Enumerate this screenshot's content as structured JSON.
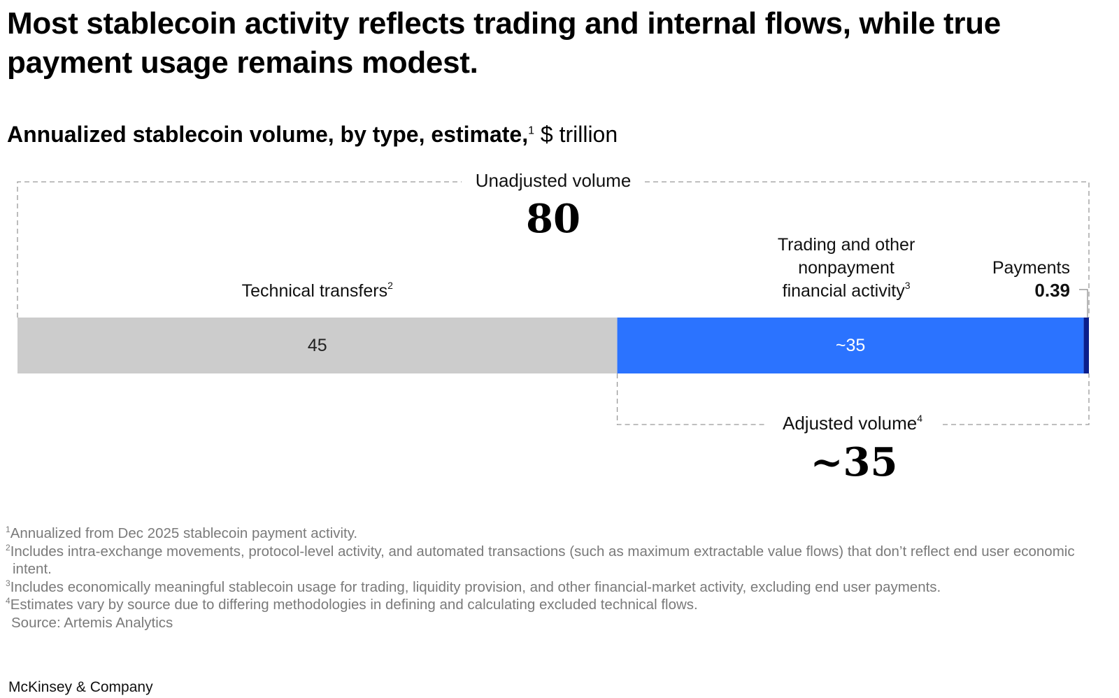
{
  "headline": "Most stablecoin activity reflects trading and internal flows, while true payment usage remains modest.",
  "subtitle": {
    "bold": "Annualized stablecoin volume, by type, estimate,",
    "sup": "1",
    "unit": " $ trillion"
  },
  "chart_data": {
    "type": "stacked-bar",
    "orientation": "horizontal",
    "title": "Annualized stablecoin volume, by type, estimate, $ trillion",
    "segments": [
      {
        "name": "Technical transfers",
        "sup": "2",
        "value": 45,
        "value_label": "45",
        "color": "#cccccc",
        "value_color": "#222222"
      },
      {
        "name": "Trading and other nonpayment financial activity",
        "name_lines": [
          "Trading and other",
          "nonpayment",
          "financial activity"
        ],
        "sup": "3",
        "value": 35,
        "value_label": "~35",
        "color": "#2b73ff",
        "value_color": "#ffffff"
      },
      {
        "name": "Payments",
        "value": 0.39,
        "value_label": "0.39",
        "color": "#0b1f8c"
      }
    ],
    "totals": {
      "unadjusted": {
        "label": "Unadjusted volume",
        "value": 80,
        "value_label": "80"
      },
      "adjusted": {
        "label": "Adjusted volume",
        "sup": "4",
        "value": 35,
        "value_label": "~35"
      }
    }
  },
  "footnotes": [
    {
      "sup": "1",
      "text": "Annualized from Dec 2025 stablecoin payment activity."
    },
    {
      "sup": "2",
      "text": "Includes intra-exchange movements, protocol-level activity, and automated transactions (such as maximum extractable value flows) that don’t reflect end user economic intent."
    },
    {
      "sup": "3",
      "text": "Includes economically meaningful stablecoin usage for trading, liquidity provision, and other financial-market activity, excluding end user payments."
    },
    {
      "sup": "4",
      "text": "Estimates vary by source due to differing methodologies in defining and calculating excluded technical flows."
    }
  ],
  "source": "Source: Artemis Analytics",
  "brand": "McKinsey & Company"
}
